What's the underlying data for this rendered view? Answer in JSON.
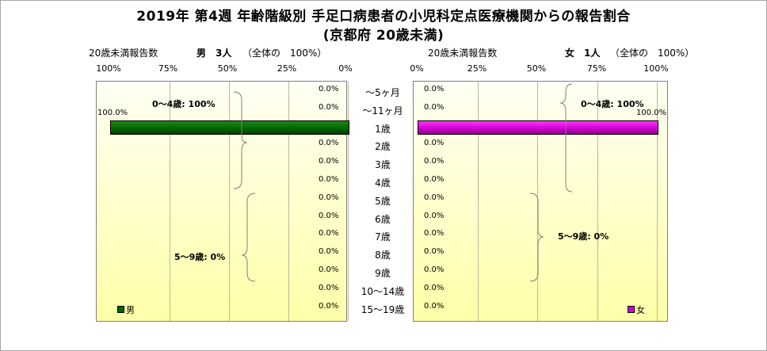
{
  "title_line1": "2019年 第4週 年齢階級別 手足口病患者の小児科定点医療機関からの報告割合",
  "title_line2": "(京都府 20歳未満)",
  "male": {
    "count_label": "20歳未満報告数",
    "sex_count": "男　3人",
    "share": "（全体の　100%）",
    "legend": "男",
    "group_0_4": "0～4歳: 100%",
    "group_5_9": "5～9歳: 0%",
    "color": "#006400"
  },
  "female": {
    "count_label": "20歳未満報告数",
    "sex_count": "女　1人",
    "share": "（全体の　100%）",
    "legend": "女",
    "group_0_4": "0～4歳: 100%",
    "group_5_9": "5～9歳: 0%",
    "color": "#cc00cc"
  },
  "chart_data": {
    "type": "bar",
    "categories": [
      "～5ヶ月",
      "～11ヶ月",
      "1歳",
      "2歳",
      "3歳",
      "4歳",
      "5歳",
      "6歳",
      "7歳",
      "8歳",
      "9歳",
      "10～14歳",
      "15～19歳"
    ],
    "series": [
      {
        "name": "男",
        "values": [
          0,
          0,
          100,
          0,
          0,
          0,
          0,
          0,
          0,
          0,
          0,
          0,
          0
        ],
        "labels": [
          "0.0%",
          "0.0%",
          "100.0%",
          "0.0%",
          "0.0%",
          "0.0%",
          "0.0%",
          "0.0%",
          "0.0%",
          "0.0%",
          "0.0%",
          "0.0%",
          "0.0%"
        ]
      },
      {
        "name": "女",
        "values": [
          0,
          0,
          100,
          0,
          0,
          0,
          0,
          0,
          0,
          0,
          0,
          0,
          0
        ],
        "labels": [
          "0.0%",
          "0.0%",
          "100.0%",
          "0.0%",
          "0.0%",
          "0.0%",
          "0.0%",
          "0.0%",
          "0.0%",
          "0.0%",
          "0.0%",
          "0.0%",
          "0.0%"
        ]
      }
    ],
    "male_ticks": [
      "100%",
      "75%",
      "50%",
      "25%",
      "0%"
    ],
    "female_ticks": [
      "0%",
      "25%",
      "50%",
      "75%",
      "100%"
    ],
    "xlim": [
      0,
      100
    ],
    "grid": true,
    "legend_position": "bottom-corner"
  }
}
